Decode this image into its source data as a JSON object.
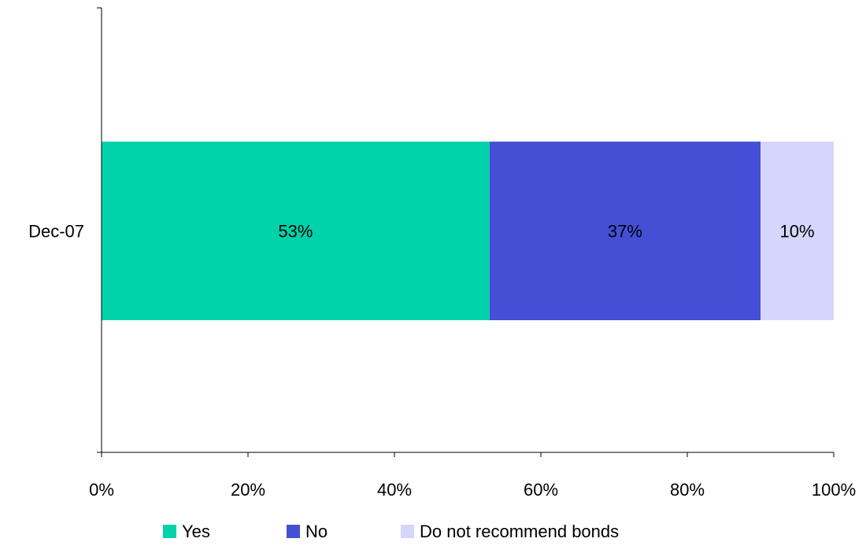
{
  "chart_data": {
    "type": "bar",
    "orientation": "horizontal",
    "stacked": "percent",
    "categories": [
      "Dec-07"
    ],
    "series": [
      {
        "name": "Yes",
        "values": [
          53
        ],
        "label": "53%",
        "color": "#00d3aa"
      },
      {
        "name": "No",
        "values": [
          37
        ],
        "label": "37%",
        "color": "#444fd6"
      },
      {
        "name": "Do not recommend bonds",
        "values": [
          10
        ],
        "label": "10%",
        "color": "#d4d6fb"
      }
    ],
    "xlim": [
      0,
      100
    ],
    "xticks": [
      0,
      20,
      40,
      60,
      80,
      100
    ],
    "xtick_labels": [
      "0%",
      "20%",
      "40%",
      "60%",
      "80%",
      "100%"
    ],
    "grid": false,
    "legend": "bottom"
  }
}
